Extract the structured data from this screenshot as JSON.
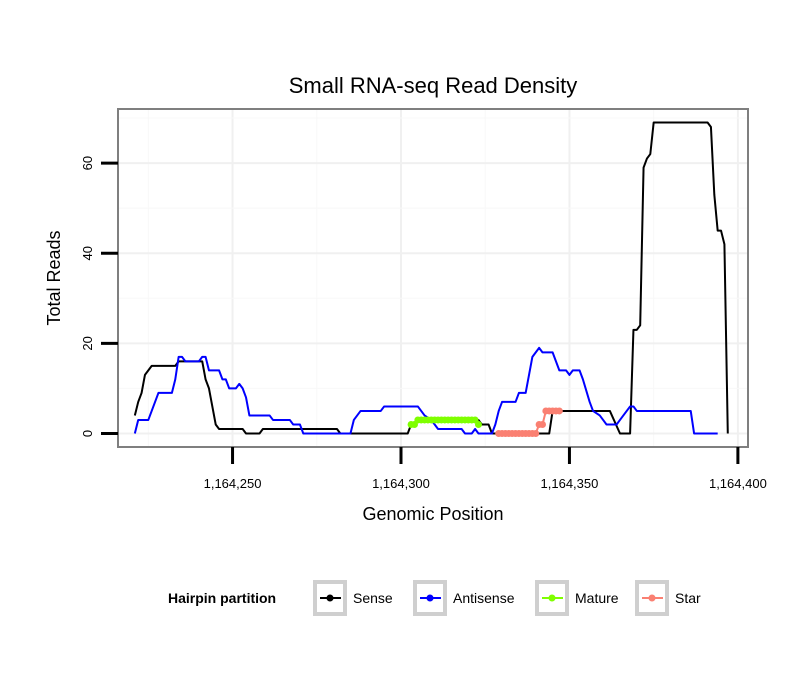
{
  "chart_data": {
    "type": "line",
    "title": "Small RNA-seq Read Density",
    "xlabel": "Genomic Position",
    "ylabel": "Total Reads",
    "xlim": [
      1164216,
      1164403
    ],
    "ylim": [
      -3,
      72
    ],
    "x_ticks": [
      1164250,
      1164300,
      1164350,
      1164400
    ],
    "x_tick_labels": [
      "1,164,250",
      "1,164,300",
      "1,164,350",
      "1,164,400"
    ],
    "y_ticks": [
      0,
      20,
      40,
      60
    ],
    "y_tick_labels": [
      "0",
      "20",
      "40",
      "60"
    ],
    "grid": true,
    "legend": {
      "title": "Hairpin partition",
      "position": "bottom"
    },
    "series": [
      {
        "name": "Sense",
        "color": "#000000",
        "markers": false,
        "points": [
          [
            1164221,
            4
          ],
          [
            1164222,
            7
          ],
          [
            1164223,
            9
          ],
          [
            1164224,
            13
          ],
          [
            1164225,
            14
          ],
          [
            1164226,
            15
          ],
          [
            1164233,
            15
          ],
          [
            1164234,
            16
          ],
          [
            1164241,
            16
          ],
          [
            1164242,
            12
          ],
          [
            1164243,
            10
          ],
          [
            1164244,
            6
          ],
          [
            1164245,
            2
          ],
          [
            1164246,
            1
          ],
          [
            1164253,
            1
          ],
          [
            1164254,
            0
          ],
          [
            1164258,
            0
          ],
          [
            1164259,
            1
          ],
          [
            1164281,
            1
          ],
          [
            1164282,
            0
          ],
          [
            1164302,
            0
          ],
          [
            1164303,
            2
          ],
          [
            1164306,
            3
          ],
          [
            1164323,
            3
          ],
          [
            1164324,
            2
          ],
          [
            1164326,
            2
          ],
          [
            1164327,
            0
          ],
          [
            1164330,
            0
          ],
          [
            1164331,
            0
          ],
          [
            1164344,
            0
          ],
          [
            1164345,
            5
          ],
          [
            1164362,
            5
          ],
          [
            1164365,
            0
          ],
          [
            1164368,
            0
          ],
          [
            1164369,
            23
          ],
          [
            1164370,
            23
          ],
          [
            1164371,
            24
          ],
          [
            1164372,
            59
          ],
          [
            1164373,
            61
          ],
          [
            1164374,
            62
          ],
          [
            1164375,
            69
          ],
          [
            1164391,
            69
          ],
          [
            1164392,
            68
          ],
          [
            1164393,
            53
          ],
          [
            1164394,
            45
          ],
          [
            1164395,
            45
          ],
          [
            1164396,
            42
          ],
          [
            1164397,
            0
          ]
        ]
      },
      {
        "name": "Antisense",
        "color": "#0000ff",
        "markers": false,
        "points": [
          [
            1164221,
            0
          ],
          [
            1164222,
            3
          ],
          [
            1164225,
            3
          ],
          [
            1164226,
            5
          ],
          [
            1164227,
            7
          ],
          [
            1164228,
            9
          ],
          [
            1164232,
            9
          ],
          [
            1164233,
            12
          ],
          [
            1164234,
            17
          ],
          [
            1164235,
            17
          ],
          [
            1164236,
            16
          ],
          [
            1164240,
            16
          ],
          [
            1164241,
            17
          ],
          [
            1164242,
            17
          ],
          [
            1164243,
            14
          ],
          [
            1164246,
            14
          ],
          [
            1164247,
            12
          ],
          [
            1164248,
            12
          ],
          [
            1164249,
            10
          ],
          [
            1164251,
            10
          ],
          [
            1164252,
            11
          ],
          [
            1164253,
            10
          ],
          [
            1164254,
            8
          ],
          [
            1164255,
            4
          ],
          [
            1164261,
            4
          ],
          [
            1164262,
            3
          ],
          [
            1164267,
            3
          ],
          [
            1164268,
            2
          ],
          [
            1164270,
            2
          ],
          [
            1164271,
            0
          ],
          [
            1164285,
            0
          ],
          [
            1164286,
            3
          ],
          [
            1164287,
            4
          ],
          [
            1164288,
            5
          ],
          [
            1164294,
            5
          ],
          [
            1164295,
            6
          ],
          [
            1164305,
            6
          ],
          [
            1164306,
            5
          ],
          [
            1164307,
            4
          ],
          [
            1164309,
            3
          ],
          [
            1164310,
            2
          ],
          [
            1164311,
            1
          ],
          [
            1164318,
            1
          ],
          [
            1164319,
            0
          ],
          [
            1164321,
            0
          ],
          [
            1164322,
            1
          ],
          [
            1164323,
            0
          ],
          [
            1164327,
            0
          ],
          [
            1164328,
            2
          ],
          [
            1164329,
            5
          ],
          [
            1164330,
            7
          ],
          [
            1164334,
            7
          ],
          [
            1164335,
            9
          ],
          [
            1164337,
            9
          ],
          [
            1164338,
            13
          ],
          [
            1164339,
            17
          ],
          [
            1164340,
            18
          ],
          [
            1164341,
            19
          ],
          [
            1164342,
            18
          ],
          [
            1164345,
            18
          ],
          [
            1164346,
            16
          ],
          [
            1164347,
            14
          ],
          [
            1164349,
            14
          ],
          [
            1164350,
            13
          ],
          [
            1164351,
            14
          ],
          [
            1164353,
            14
          ],
          [
            1164354,
            12
          ],
          [
            1164356,
            7
          ],
          [
            1164357,
            5
          ],
          [
            1164359,
            4
          ],
          [
            1164360,
            3
          ],
          [
            1164361,
            2
          ],
          [
            1164364,
            2
          ],
          [
            1164365,
            3
          ],
          [
            1164366,
            4
          ],
          [
            1164368,
            6
          ],
          [
            1164369,
            6
          ],
          [
            1164370,
            5
          ],
          [
            1164385,
            5
          ],
          [
            1164386,
            5
          ],
          [
            1164387,
            0
          ],
          [
            1164394,
            0
          ]
        ]
      },
      {
        "name": "Mature",
        "color": "#7fff00",
        "markers": true,
        "points": [
          [
            1164303,
            2
          ],
          [
            1164304,
            2
          ],
          [
            1164305,
            3
          ],
          [
            1164306,
            3
          ],
          [
            1164307,
            3
          ],
          [
            1164308,
            3
          ],
          [
            1164309,
            3
          ],
          [
            1164310,
            3
          ],
          [
            1164311,
            3
          ],
          [
            1164312,
            3
          ],
          [
            1164313,
            3
          ],
          [
            1164314,
            3
          ],
          [
            1164315,
            3
          ],
          [
            1164316,
            3
          ],
          [
            1164317,
            3
          ],
          [
            1164318,
            3
          ],
          [
            1164319,
            3
          ],
          [
            1164320,
            3
          ],
          [
            1164321,
            3
          ],
          [
            1164322,
            3
          ],
          [
            1164323,
            2
          ]
        ]
      },
      {
        "name": "Star",
        "color": "#fa8072",
        "markers": true,
        "points": [
          [
            1164329,
            0
          ],
          [
            1164330,
            0
          ],
          [
            1164331,
            0
          ],
          [
            1164332,
            0
          ],
          [
            1164333,
            0
          ],
          [
            1164334,
            0
          ],
          [
            1164335,
            0
          ],
          [
            1164336,
            0
          ],
          [
            1164337,
            0
          ],
          [
            1164338,
            0
          ],
          [
            1164339,
            0
          ],
          [
            1164340,
            0
          ],
          [
            1164341,
            2
          ],
          [
            1164342,
            2
          ],
          [
            1164343,
            5
          ],
          [
            1164344,
            5
          ],
          [
            1164345,
            5
          ],
          [
            1164346,
            5
          ],
          [
            1164347,
            5
          ]
        ]
      }
    ]
  }
}
